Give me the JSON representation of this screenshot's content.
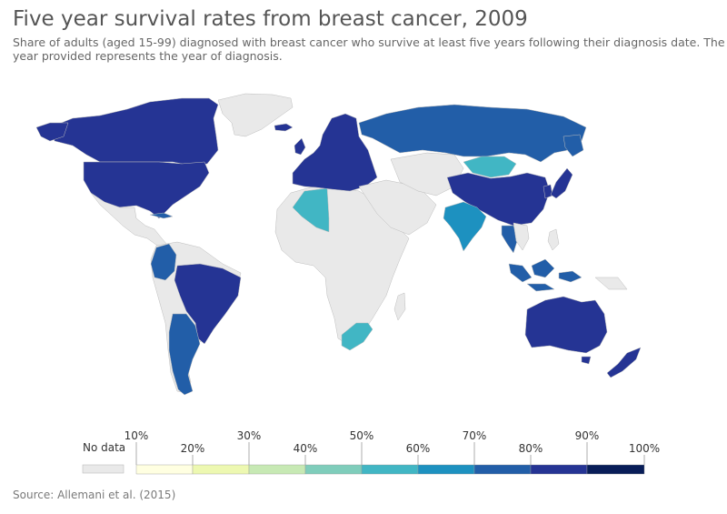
{
  "title": "Five year survival rates from breast cancer, 2009",
  "subtitle": "Share of adults (aged 15-99) diagnosed with breast cancer who survive at least five years following their diagnosis date. The year provided represents the year of diagnosis.",
  "source": "Source: Allemani et al. (2015)",
  "colors": {
    "no_data": "#e9e9e9",
    "border": "#bdbdbd",
    "c70_80": "#225ea8",
    "c80_90": "#253494",
    "c60_70": "#1d91c0",
    "c50_60": "#41b6c4"
  },
  "legend": {
    "no_data_label": "No data",
    "labels_top": [
      "10%",
      "30%",
      "50%",
      "70%",
      "90%"
    ],
    "labels_bottom": [
      "20%",
      "40%",
      "60%",
      "80%",
      "100%"
    ],
    "bins": [
      {
        "range": "0-10%",
        "color": "#ffffe1"
      },
      {
        "range": "10-20%",
        "color": "#edf8b1"
      },
      {
        "range": "20-30%",
        "color": "#d4ecb4"
      },
      {
        "range": "30-40%",
        "color": "#c7e9b4"
      },
      {
        "range": "40-50%",
        "color": "#7fcdbb"
      },
      {
        "range": "50-60%",
        "color": "#41b6c4"
      },
      {
        "range": "60-70%",
        "color": "#1d91c0"
      },
      {
        "range": "70-80%",
        "color": "#225ea8"
      },
      {
        "range": "80-90%",
        "color": "#253494"
      },
      {
        "range": "90-100%",
        "color": "#081d58"
      }
    ]
  },
  "regions": [
    {
      "name": "North America",
      "bin": "80-90%"
    },
    {
      "name": "Greenland",
      "bin": "No data"
    },
    {
      "name": "Mexico & Central America",
      "bin": "No data"
    },
    {
      "name": "Cuba",
      "bin": "70-80%"
    },
    {
      "name": "Colombia / Ecuador",
      "bin": "70-80%"
    },
    {
      "name": "Brazil",
      "bin": "80-90%"
    },
    {
      "name": "Argentina / Chile",
      "bin": "70-80%"
    },
    {
      "name": "Russia",
      "bin": "70-80%"
    },
    {
      "name": "Western & Northern Europe",
      "bin": "80-90%"
    },
    {
      "name": "Algeria",
      "bin": "50-60%"
    },
    {
      "name": "India",
      "bin": "60-70%"
    },
    {
      "name": "China",
      "bin": "80-90%"
    },
    {
      "name": "Mongolia",
      "bin": "50-60%"
    },
    {
      "name": "Japan",
      "bin": "80-90%"
    },
    {
      "name": "South Africa",
      "bin": "50-60%"
    },
    {
      "name": "Australia",
      "bin": "80-90%"
    },
    {
      "name": "New Zealand",
      "bin": "80-90%"
    },
    {
      "name": "Indonesia / Malaysia",
      "bin": "70-80%"
    }
  ]
}
